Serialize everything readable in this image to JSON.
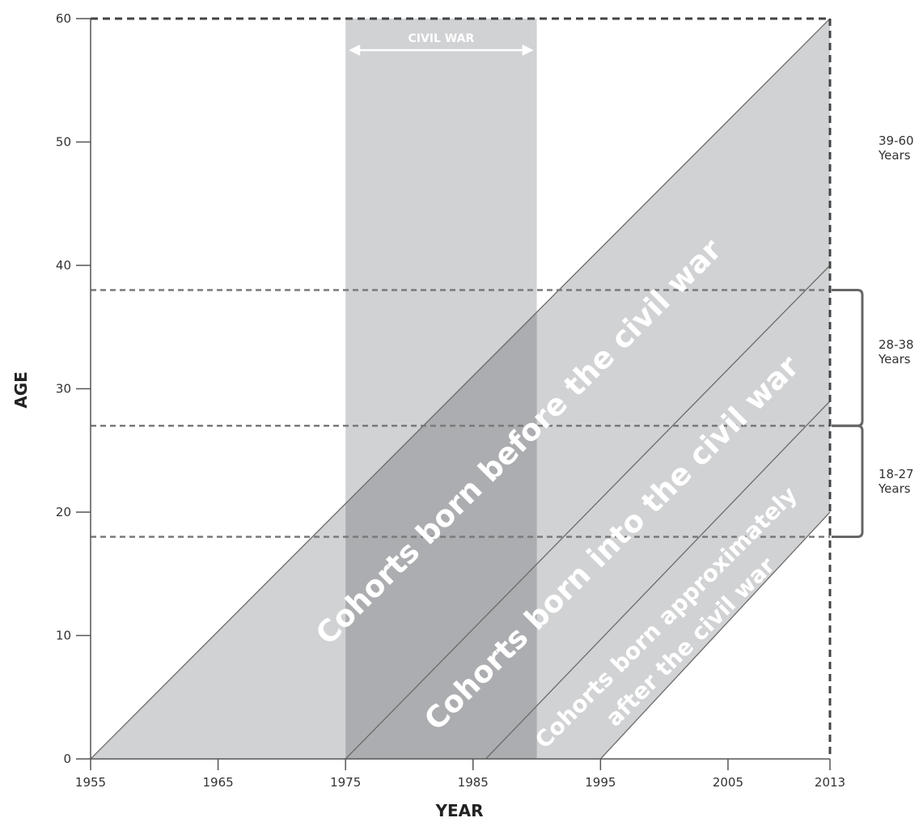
{
  "chart_data": {
    "type": "area",
    "xlabel": "YEAR",
    "ylabel": "AGE",
    "xlim": [
      1955,
      2013
    ],
    "ylim": [
      0,
      60
    ],
    "x_ticks": [
      1955,
      1965,
      1975,
      1985,
      1995,
      2005,
      2013
    ],
    "y_ticks": [
      0,
      10,
      20,
      30,
      40,
      50,
      60
    ],
    "grid": false,
    "shaded_period": {
      "label": "CIVIL WAR",
      "start": 1975,
      "end": 1990
    },
    "cohort_lines": [
      {
        "x_start": 1955,
        "x_end": 2013,
        "age_start": 0,
        "age_end": 60
      },
      {
        "x_start": 1975,
        "x_end": 2013,
        "age_start": 0,
        "age_end": 40
      },
      {
        "x_start": 1986,
        "x_end": 2013,
        "age_start": 0,
        "age_end": 29
      },
      {
        "x_start": 1995,
        "x_end": 2013,
        "age_start": 0,
        "age_end": 20
      }
    ],
    "cohort_labels": [
      "Cohorts born before the civil war",
      "Cohorts born into the civil war",
      "Cohorts born approximately",
      "after the civil war"
    ],
    "age_reference_lines": [
      18,
      27,
      38,
      60
    ],
    "survey_year": 2013,
    "age_groups": [
      {
        "range": [
          39,
          60
        ],
        "line1": "39-60",
        "line2": "Years",
        "bracket": false
      },
      {
        "range": [
          28,
          38
        ],
        "line1": "28-38",
        "line2": "Years",
        "bracket": true
      },
      {
        "range": [
          18,
          27
        ],
        "line1": "18-27",
        "line2": "Years",
        "bracket": true
      }
    ],
    "colors": {
      "cohort_area": "#d1d2d4",
      "overlap_area": "#acadb0",
      "war_band": "#d1d2d4",
      "dashed_line": "#7a7a7a",
      "axis": "#555555"
    }
  }
}
